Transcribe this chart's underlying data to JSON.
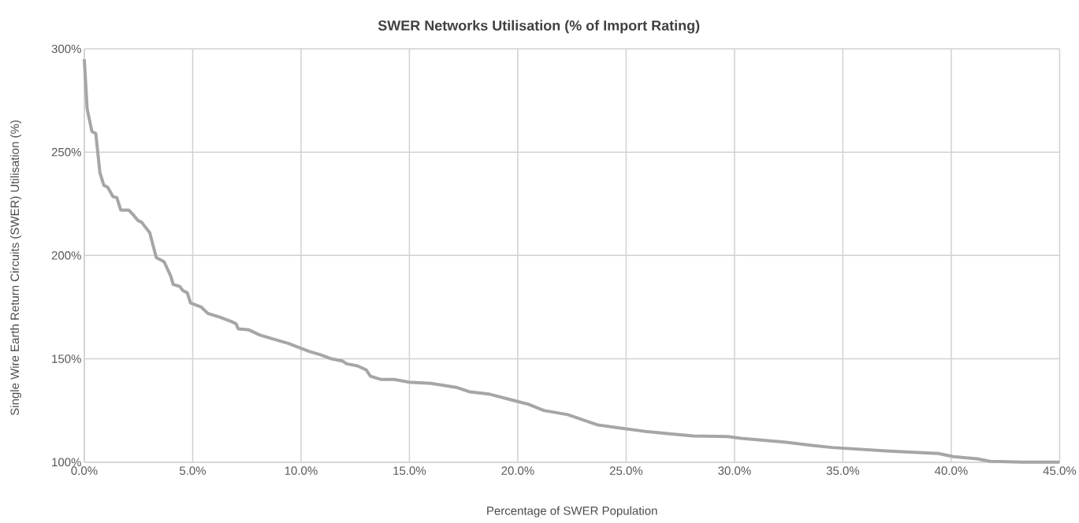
{
  "chart_data": {
    "type": "line",
    "title": "SWER Networks Utilisation (% of Import Rating)",
    "xlabel": "Percentage of SWER Population",
    "ylabel": "Single Wire Earth Return Circuits (SWER) Utilisation (%)",
    "xlim": [
      0,
      45
    ],
    "ylim": [
      100,
      300
    ],
    "xticks": [
      {
        "value": 0,
        "label": "0.0%"
      },
      {
        "value": 5,
        "label": "5.0%"
      },
      {
        "value": 10,
        "label": "10.0%"
      },
      {
        "value": 15,
        "label": "15.0%"
      },
      {
        "value": 20,
        "label": "20.0%"
      },
      {
        "value": 25,
        "label": "25.0%"
      },
      {
        "value": 30,
        "label": "30.0%"
      },
      {
        "value": 35,
        "label": "35.0%"
      },
      {
        "value": 40,
        "label": "40.0%"
      },
      {
        "value": 45,
        "label": "45.0%"
      }
    ],
    "yticks": [
      {
        "value": 100,
        "label": "100%"
      },
      {
        "value": 150,
        "label": "150%"
      },
      {
        "value": 200,
        "label": "200%"
      },
      {
        "value": 250,
        "label": "250%"
      },
      {
        "value": 300,
        "label": "300%"
      }
    ],
    "grid": true,
    "marker": "none",
    "line_style": "solid",
    "x": [
      0,
      0.13,
      0.35,
      0.53,
      0.72,
      0.9,
      1.08,
      1.32,
      1.5,
      1.68,
      2.05,
      2.23,
      2.47,
      2.65,
      3.02,
      3.32,
      3.68,
      3.99,
      4.1,
      4.4,
      4.55,
      4.75,
      4.9,
      5.4,
      5.7,
      6.3,
      6.8,
      7.0,
      7.1,
      7.6,
      8.1,
      8.9,
      9.4,
      9.9,
      10.4,
      10.9,
      11.4,
      11.9,
      12.1,
      12.6,
      13.0,
      13.2,
      13.7,
      14.3,
      15.0,
      16.0,
      17.2,
      17.8,
      18.65,
      19.75,
      20.5,
      21.2,
      22.3,
      23.7,
      24.6,
      25.8,
      27.2,
      28.1,
      29.7,
      30.3,
      32.3,
      33.5,
      34.5,
      37.0,
      39.4,
      40.1,
      41.2,
      41.8,
      43.3,
      45
    ],
    "series": [
      {
        "color": "#a6a6a6",
        "values": [
          295,
          271,
          260,
          259,
          240,
          234,
          233,
          228.5,
          228,
          222,
          222,
          220,
          217,
          216,
          211,
          199,
          197,
          190,
          186,
          185,
          183,
          182,
          177,
          175,
          172,
          170,
          168,
          167,
          164.5,
          164,
          161.5,
          159,
          157.5,
          155.5,
          153.5,
          152,
          150,
          149,
          147.6,
          146.6,
          144.7,
          141.6,
          140,
          140,
          138.7,
          138.1,
          136.1,
          134,
          133,
          130,
          128,
          125,
          123,
          118,
          116.7,
          115,
          113.5,
          112.7,
          112.4,
          111.5,
          109.7,
          108.2,
          107.1,
          105.4,
          104.2,
          102.7,
          101.6,
          100.4,
          100,
          100
        ]
      }
    ]
  }
}
